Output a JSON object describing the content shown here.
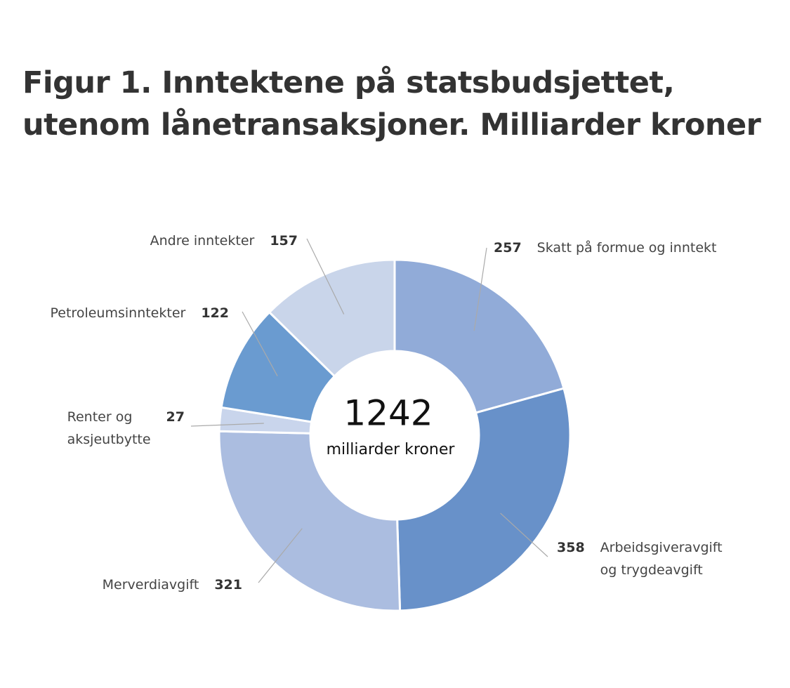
{
  "chart_data": {
    "type": "donut",
    "title": "Figur 1. Inntektene på statsbudsjettet,\nutenom lånetransaksjoner. Milliarder kroner",
    "total": 1242,
    "center_label": "milliarder kroner",
    "categories": [
      "Skatt på formue og inntekt",
      "Arbeidsgiveravgift\nog trygdeavgift",
      "Merverdiavgift",
      "Renter og\naksjeutbytte",
      "Petroleumsinntekter",
      "Andre inntekter"
    ],
    "values": [
      257,
      358,
      321,
      27,
      122,
      157
    ],
    "colors": [
      "#91abd8",
      "#6891c9",
      "#abbde0",
      "#c9d5ec",
      "#6a9bd0",
      "#c9d5ea"
    ]
  }
}
